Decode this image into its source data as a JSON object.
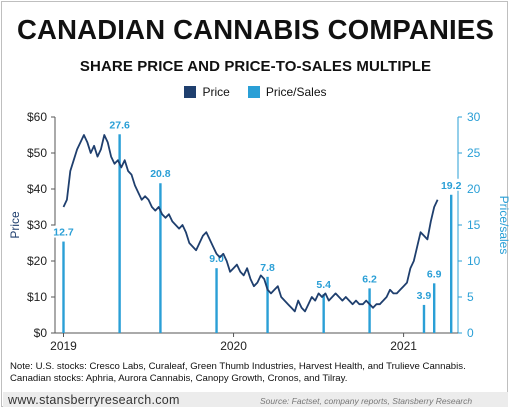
{
  "title": "CANADIAN CANNABIS COMPANIES",
  "subtitle": "SHARE PRICE AND PRICE-TO-SALES MULTIPLE",
  "note_line1": "Note: U.S. stocks: Cresco Labs, Curaleaf, Green Thumb Industries, Harvest Health, and Trulieve Cannabis.",
  "note_line2": "Canadian stocks: Aphria, Aurora Cannabis, Canopy Growth, Cronos, and Tilray.",
  "footer_url": "www.stansberryresearch.com",
  "footer_source": "Source: Factset, company reports, Stansberry Research",
  "colors": {
    "price": "#1f3f6e",
    "price_sales": "#2a9fd6"
  },
  "chart_data": {
    "type": "line",
    "title": "CANADIAN CANNABIS COMPANIES",
    "subtitle": "SHARE PRICE AND PRICE-TO-SALES MULTIPLE",
    "ylabel": "Price",
    "y2label": "Price/sales",
    "ylim": [
      0,
      60
    ],
    "y2lim": [
      0,
      30
    ],
    "y_ticks": [
      "$0",
      "$10",
      "$20",
      "$30",
      "$40",
      "$50",
      "$60"
    ],
    "y2_ticks": [
      "0",
      "5",
      "10",
      "15",
      "20",
      "25",
      "30"
    ],
    "x_ticks": [
      {
        "label": "2019",
        "x": 2019.0
      },
      {
        "label": "2020",
        "x": 2020.0
      },
      {
        "label": "2021",
        "x": 2021.0
      }
    ],
    "xlim": [
      2018.95,
      2021.32
    ],
    "legend": [
      {
        "name": "Price",
        "color": "#1f3f6e"
      },
      {
        "name": "Price/Sales",
        "color": "#2a9fd6"
      }
    ],
    "legend_position": "top-center",
    "grid": false,
    "series": [
      {
        "name": "Price",
        "axis": "left",
        "x": [
          2019.0,
          2019.02,
          2019.04,
          2019.06,
          2019.08,
          2019.1,
          2019.12,
          2019.14,
          2019.16,
          2019.18,
          2019.2,
          2019.22,
          2019.24,
          2019.26,
          2019.28,
          2019.3,
          2019.32,
          2019.34,
          2019.36,
          2019.38,
          2019.4,
          2019.42,
          2019.44,
          2019.46,
          2019.48,
          2019.5,
          2019.52,
          2019.54,
          2019.56,
          2019.58,
          2019.6,
          2019.62,
          2019.64,
          2019.66,
          2019.68,
          2019.7,
          2019.72,
          2019.74,
          2019.76,
          2019.78,
          2019.8,
          2019.82,
          2019.84,
          2019.86,
          2019.88,
          2019.9,
          2019.92,
          2019.94,
          2019.96,
          2019.98,
          2020.0,
          2020.02,
          2020.04,
          2020.06,
          2020.08,
          2020.1,
          2020.12,
          2020.14,
          2020.16,
          2020.18,
          2020.2,
          2020.22,
          2020.24,
          2020.26,
          2020.28,
          2020.3,
          2020.32,
          2020.34,
          2020.36,
          2020.38,
          2020.4,
          2020.42,
          2020.44,
          2020.46,
          2020.48,
          2020.5,
          2020.52,
          2020.54,
          2020.56,
          2020.58,
          2020.6,
          2020.62,
          2020.64,
          2020.66,
          2020.68,
          2020.7,
          2020.72,
          2020.74,
          2020.76,
          2020.78,
          2020.8,
          2020.82,
          2020.84,
          2020.86,
          2020.88,
          2020.9,
          2020.92,
          2020.94,
          2020.96,
          2020.98,
          2021.0,
          2021.02,
          2021.04,
          2021.06,
          2021.08,
          2021.1
        ],
        "values": [
          35,
          37,
          45,
          48,
          51,
          53,
          55,
          53,
          50,
          52,
          49,
          51,
          55,
          53,
          49,
          47,
          48,
          46,
          48,
          45,
          44,
          41,
          39,
          37,
          38,
          37,
          35,
          34,
          35,
          33,
          32,
          33,
          31,
          30,
          29,
          30,
          28,
          25,
          24,
          23,
          25,
          27,
          28,
          26,
          24,
          22,
          21,
          22,
          20,
          17,
          18,
          19,
          17,
          16,
          18,
          15,
          13,
          14,
          16,
          15,
          12,
          11,
          12,
          13,
          10,
          9,
          8,
          7,
          6,
          9,
          7,
          6,
          8,
          10,
          9,
          11,
          10,
          11,
          9,
          10,
          11,
          10,
          9,
          10,
          9,
          8,
          9,
          8,
          8,
          9,
          8,
          7,
          8,
          8,
          9,
          10,
          12,
          11,
          11,
          12,
          13,
          14,
          18,
          20,
          24,
          28
        ],
        "x_extra": [
          2021.12,
          2021.14,
          2021.16,
          2021.18,
          2021.2
        ],
        "values_extra": [
          27,
          26,
          31,
          35,
          37
        ]
      },
      {
        "name": "Price/Sales",
        "axis": "right",
        "type": "bar",
        "x": [
          2019.0,
          2019.33,
          2019.57,
          2019.9,
          2020.2,
          2020.53,
          2020.8,
          2021.12,
          2021.18,
          2021.28
        ],
        "values": [
          12.7,
          27.6,
          20.8,
          9.0,
          7.8,
          5.4,
          6.2,
          3.9,
          6.9,
          19.2
        ],
        "labels": [
          "12.7",
          "27.6",
          "20.8",
          "9.0",
          "7.8",
          "5.4",
          "6.2",
          "3.9",
          "6.9",
          "19.2"
        ]
      }
    ]
  }
}
